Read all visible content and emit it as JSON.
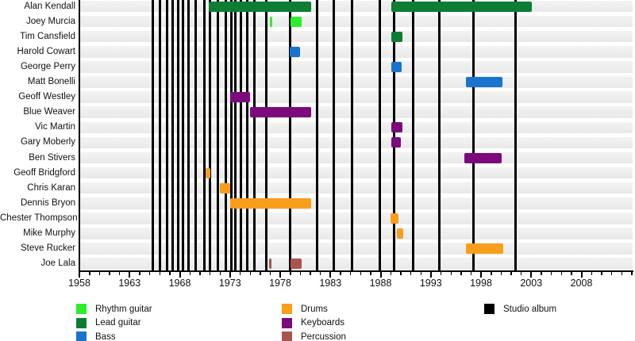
{
  "chart_data": {
    "type": "timeline",
    "description": "Band members tenure timeline with studio album release markers",
    "x_axis": {
      "start_year": 1958,
      "end_year": 2013,
      "major_tick_labels": [
        "1958",
        "1963",
        "1968",
        "1973",
        "1978",
        "1983",
        "1988",
        "1993",
        "1998",
        "2003",
        "2008"
      ],
      "minor_tick_interval_years": 1,
      "major_tick_interval_years": 5
    },
    "roles_colors": {
      "Rhythm guitar": "#2dee2d",
      "Lead guitar": "#0c7d33",
      "Bass": "#1874cd",
      "Drums": "#f89e1b",
      "Keyboards": "#7c0a7c",
      "Percussion": "#a8554f",
      "Studio album": "#000000"
    },
    "rows": [
      {
        "name": "Alan Kendall",
        "role": "Lead guitar",
        "segments": [
          [
            1970.9,
            1981.1
          ],
          [
            1989.05,
            2003.05
          ]
        ]
      },
      {
        "name": "Joey Murcia",
        "role": "Rhythm guitar",
        "segments": [
          [
            1977.0,
            1977.2
          ],
          [
            1979.05,
            1980.1
          ]
        ]
      },
      {
        "name": "Tim Cansfield",
        "role": "Lead guitar",
        "segments": [
          [
            1989.05,
            1990.15
          ]
        ]
      },
      {
        "name": "Harold Cowart",
        "role": "Bass",
        "segments": [
          [
            1978.95,
            1980.0
          ]
        ]
      },
      {
        "name": "George Perry",
        "role": "Bass",
        "segments": [
          [
            1989.05,
            1990.1
          ]
        ]
      },
      {
        "name": "Matt Bonelli",
        "role": "Bass",
        "segments": [
          [
            1996.5,
            2000.1
          ]
        ]
      },
      {
        "name": "Geoff Westley",
        "role": "Keyboards",
        "segments": [
          [
            1973.0,
            1975.0
          ]
        ]
      },
      {
        "name": "Blue Weaver",
        "role": "Keyboards",
        "segments": [
          [
            1975.0,
            1981.1
          ]
        ]
      },
      {
        "name": "Vic Martin",
        "role": "Keyboards",
        "segments": [
          [
            1989.05,
            1990.15
          ]
        ]
      },
      {
        "name": "Gary Moberly",
        "role": "Keyboards",
        "segments": [
          [
            1989.05,
            1990.0
          ]
        ]
      },
      {
        "name": "Ben Stivers",
        "role": "Keyboards",
        "segments": [
          [
            1996.35,
            2000.05
          ]
        ]
      },
      {
        "name": "Geoff Bridgford",
        "role": "Drums",
        "segments": [
          [
            1970.6,
            1971.05
          ]
        ]
      },
      {
        "name": "Chris Karan",
        "role": "Drums",
        "segments": [
          [
            1972.0,
            1973.0
          ]
        ]
      },
      {
        "name": "Dennis Bryon",
        "role": "Drums",
        "segments": [
          [
            1973.0,
            1981.1
          ]
        ]
      },
      {
        "name": "Chester Thompson",
        "role": "Drums",
        "segments": [
          [
            1989.0,
            1989.8
          ]
        ]
      },
      {
        "name": "Mike Murphy",
        "role": "Drums",
        "segments": [
          [
            1989.6,
            1990.25
          ]
        ]
      },
      {
        "name": "Steve Rucker",
        "role": "Drums",
        "segments": [
          [
            1996.5,
            2000.2
          ]
        ]
      },
      {
        "name": "Joe Lala",
        "role": "Percussion",
        "segments": [
          [
            1976.9,
            1977.1
          ],
          [
            1979.0,
            1980.15
          ]
        ]
      }
    ],
    "studio_album_markers_years": [
      1965.3,
      1966.0,
      1966.75,
      1967.3,
      1967.85,
      1968.3,
      1968.85,
      1969.55,
      1970.45,
      1971.0,
      1971.8,
      1972.55,
      1973.1,
      1973.5,
      1974.05,
      1974.75,
      1975.4,
      1976.6,
      1979.0,
      1981.7,
      1983.35,
      1985.15,
      1987.9,
      1989.35,
      1991.25,
      1993.85,
      1997.25,
      2001.45
    ],
    "legend": [
      {
        "label": "Rhythm guitar",
        "color_key": "Rhythm guitar",
        "column": 0,
        "line": 0
      },
      {
        "label": "Lead guitar",
        "color_key": "Lead guitar",
        "column": 0,
        "line": 1
      },
      {
        "label": "Bass",
        "color_key": "Bass",
        "column": 0,
        "line": 2
      },
      {
        "label": "Drums",
        "color_key": "Drums",
        "column": 1,
        "line": 0
      },
      {
        "label": "Keyboards",
        "color_key": "Keyboards",
        "column": 1,
        "line": 1
      },
      {
        "label": "Percussion",
        "color_key": "Percussion",
        "column": 1,
        "line": 2
      },
      {
        "label": "Studio album",
        "color_key": "Studio album",
        "column": 2,
        "line": 0
      }
    ]
  }
}
